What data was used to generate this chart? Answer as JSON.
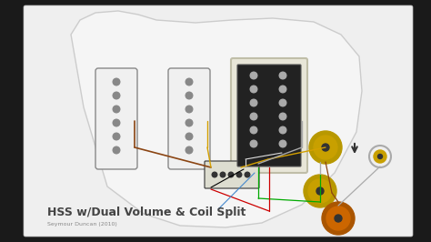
{
  "title": "HSS w/Dual Volume & Coil Split",
  "subtitle": "Seymour Duncan (2010)",
  "background_color": "#1a1a1a",
  "diagram_bg": "#efefef",
  "pickguard_color": "#f5f5f5",
  "pickguard_edge": "#cccccc",
  "pickup_single_fill": "#f0f0f0",
  "pickup_single_edge": "#888888",
  "pickup_humbucker_fill": "#222222",
  "knob_gold": "#c8a000",
  "knob_orange": "#cc6600",
  "switch_color": "#333333",
  "arrow_color": "#333333",
  "title_fontsize": 9,
  "subtitle_fontsize": 4.5,
  "fig_width": 4.74,
  "fig_height": 2.66,
  "dpi": 100,
  "wire_brown": "#8B4513",
  "wire_gold": "#d4a000",
  "wire_green": "#00aa00",
  "wire_red": "#cc0000",
  "wire_gray": "#aaaaaa",
  "wire_black": "#000000",
  "wire_white": "#dddddd"
}
